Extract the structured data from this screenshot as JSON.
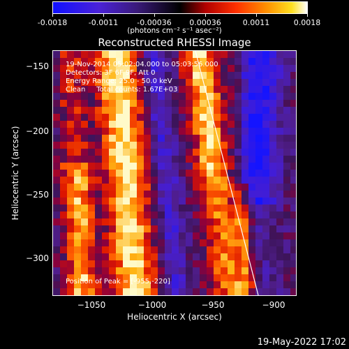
{
  "colorbar": {
    "ticks": [
      "-0.0018",
      "-0.0011",
      "-0.00036",
      "0.00036",
      "0.0011",
      "0.0018"
    ],
    "units": "(photons cm⁻² s⁻¹ asec⁻²)"
  },
  "title": "Reconstructed RHESSI Image",
  "annotations": {
    "time": "19-Nov-2014 05:02:04.000 to 05:03:56.000",
    "detectors": "Detectors: 3F 6F 9F, Att 0",
    "energy": "Energy Range: 25.0 - 50.0 keV",
    "method": "Clean     Total counts: 1.67E+03",
    "peak": "Position of Peak = [-955,-220]"
  },
  "axes": {
    "xlabel": "Heliocentric X (arcsec)",
    "ylabel": "Heliocentric Y (arcsec)",
    "xticks": [
      "−1050",
      "−1000",
      "−950",
      "−900"
    ],
    "yticks": [
      "−150",
      "−200",
      "−250",
      "−300"
    ]
  },
  "timestamp": "19-May-2022 17:02",
  "colors": {
    "background": "#000000",
    "limb": "#ffffff"
  }
}
